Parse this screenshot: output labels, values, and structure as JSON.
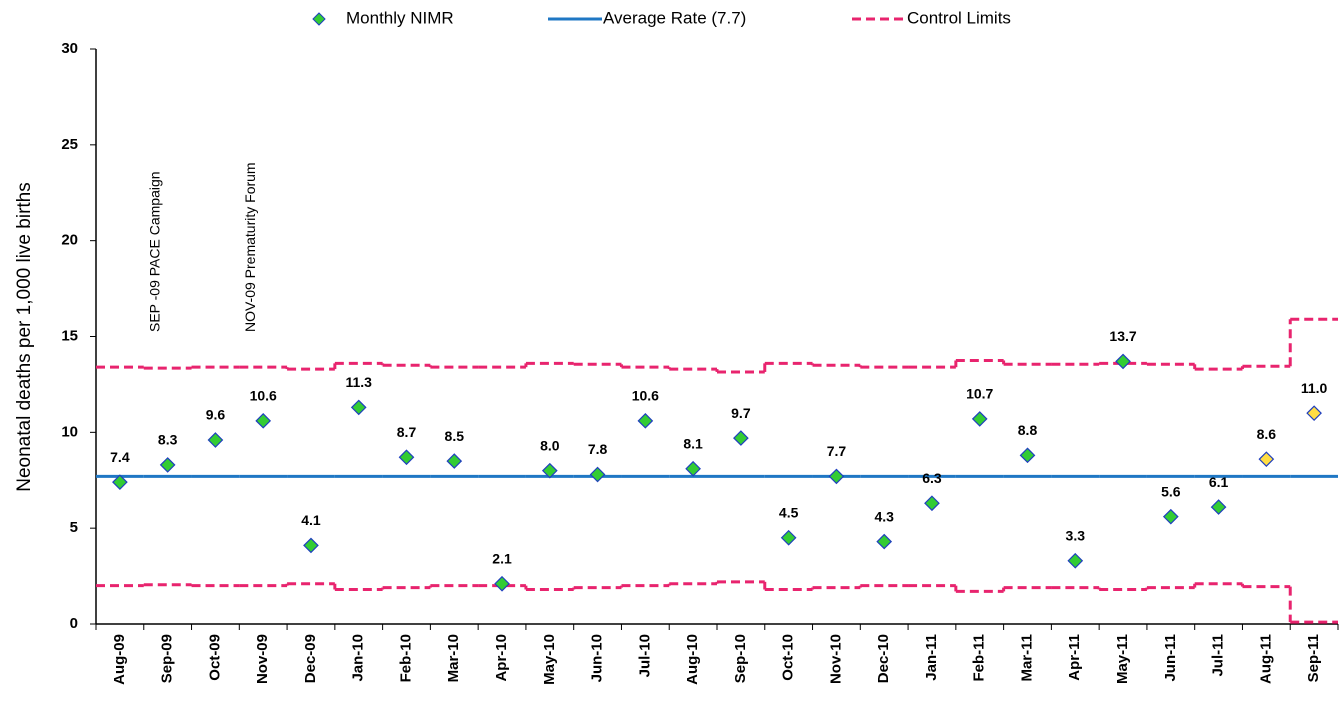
{
  "chart_data": {
    "type": "control",
    "y_label": "Neonatal deaths per 1,000 live births",
    "categories": [
      "Aug-09",
      "Sep-09",
      "Oct-09",
      "Nov-09",
      "Dec-09",
      "Jan-10",
      "Feb-10",
      "Mar-10",
      "Apr-10",
      "May-10",
      "Jun-10",
      "Jul-10",
      "Aug-10",
      "Sep-10",
      "Oct-10",
      "Nov-10",
      "Dec-10",
      "Jan-11",
      "Feb-11",
      "Mar-11",
      "Apr-11",
      "May-11",
      "Jun-11",
      "Jul-11",
      "Aug-11",
      "Sep-11"
    ],
    "series": [
      {
        "name": "Monthly NIMR",
        "color": "#33cc33",
        "edge_color": "#1f3fbf",
        "colors": [
          "#33cc33",
          "#33cc33",
          "#33cc33",
          "#33cc33",
          "#33cc33",
          "#33cc33",
          "#33cc33",
          "#33cc33",
          "#33cc33",
          "#33cc33",
          "#33cc33",
          "#33cc33",
          "#33cc33",
          "#33cc33",
          "#33cc33",
          "#33cc33",
          "#33cc33",
          "#33cc33",
          "#33cc33",
          "#33cc33",
          "#33cc33",
          "#33cc33",
          "#33cc33",
          "#33cc33",
          "#ffdd44",
          "#ffdd44"
        ],
        "values": [
          7.4,
          8.3,
          9.6,
          10.6,
          4.1,
          11.3,
          8.7,
          8.5,
          2.1,
          8.0,
          7.8,
          10.6,
          8.1,
          9.7,
          4.5,
          7.7,
          4.3,
          6.3,
          10.7,
          8.8,
          3.3,
          13.7,
          5.6,
          6.1,
          8.6,
          11.0
        ],
        "value_labels": [
          "7.4",
          "8.3",
          "9.6",
          "10.6",
          "4.1",
          "11.3",
          "8.7",
          "8.5",
          "2.1",
          "8.0",
          "7.8",
          "10.6",
          "8.1",
          "9.7",
          "4.5",
          "7.7",
          "4.3",
          "6.3",
          "10.7",
          "8.8",
          "3.3",
          "13.7",
          "5.6",
          "6.1",
          "8.6",
          "11.0"
        ]
      },
      {
        "name": "Average Rate (7.7)",
        "color": "#1f77c4",
        "values": [
          7.7,
          7.7,
          7.7,
          7.7,
          7.7,
          7.7,
          7.7,
          7.7,
          7.7,
          7.7,
          7.7,
          7.7,
          7.7,
          7.7,
          7.7,
          7.7,
          7.7,
          7.7,
          7.7,
          7.7,
          7.7,
          7.7,
          7.7,
          7.7,
          7.7,
          7.7
        ]
      },
      {
        "name": "Control Limits",
        "color": "#e8246e",
        "upper": [
          13.4,
          13.35,
          13.4,
          13.4,
          13.3,
          13.6,
          13.5,
          13.4,
          13.4,
          13.6,
          13.55,
          13.4,
          13.3,
          13.15,
          13.6,
          13.5,
          13.4,
          13.4,
          13.75,
          13.55,
          13.55,
          13.6,
          13.55,
          13.3,
          13.45,
          15.9
        ],
        "lower": [
          2.0,
          2.05,
          2.0,
          2.0,
          2.1,
          1.8,
          1.9,
          2.0,
          2.0,
          1.8,
          1.9,
          2.0,
          2.1,
          2.2,
          1.8,
          1.9,
          2.0,
          2.0,
          1.7,
          1.9,
          1.9,
          1.8,
          1.9,
          2.1,
          1.95,
          0.1
        ]
      }
    ],
    "annotations": [
      {
        "text": "SEP -09 PACE Campaign",
        "x": "Sep-09"
      },
      {
        "text": "NOV-09 Prematurity Forum",
        "x": "Nov-09"
      }
    ],
    "ylim": [
      0,
      30
    ],
    "yticks": [
      0,
      5,
      10,
      15,
      20,
      25,
      30
    ]
  }
}
